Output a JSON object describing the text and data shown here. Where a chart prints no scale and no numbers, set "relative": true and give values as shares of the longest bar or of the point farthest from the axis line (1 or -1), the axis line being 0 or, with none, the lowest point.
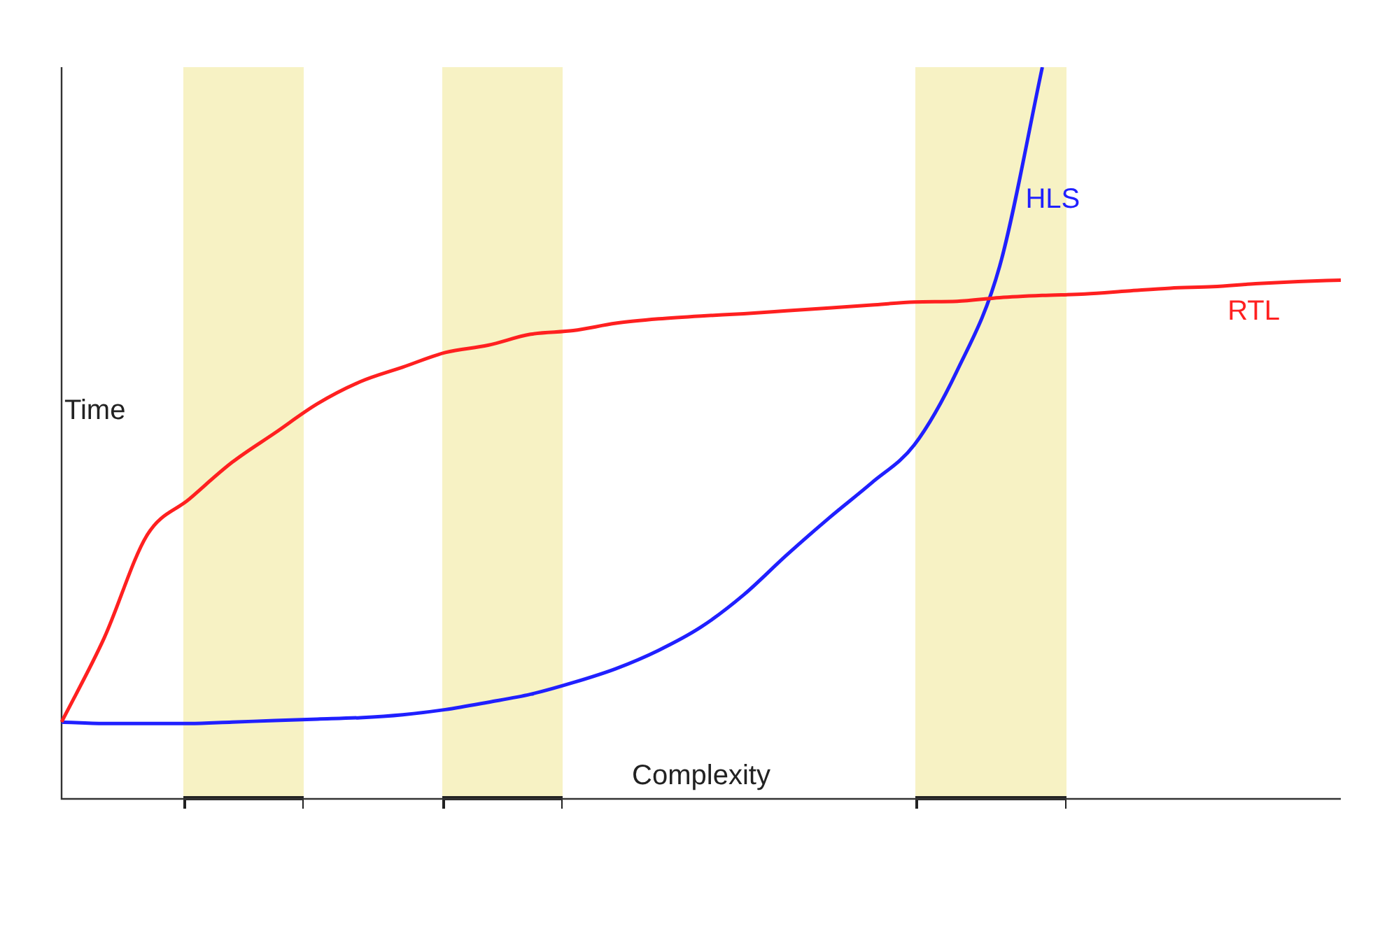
{
  "chart_data": {
    "type": "line",
    "relative": true,
    "xlabel": "Complexity",
    "ylabel": "Time",
    "legend": false,
    "marker": "none",
    "line_style": "solid",
    "categories": [
      null,
      null,
      null,
      null,
      null,
      null,
      null,
      null,
      null,
      null,
      null,
      null,
      null,
      null,
      null,
      null,
      null,
      null,
      null,
      null,
      null,
      null,
      null,
      null,
      null,
      null,
      null,
      null,
      null,
      null,
      null
    ],
    "series": [
      {
        "name": "RTL",
        "color": "#ff2020",
        "values": [
          0.105,
          0.22,
          0.36,
          0.41,
          0.46,
          0.5,
          0.54,
          0.57,
          0.59,
          0.61,
          0.62,
          0.635,
          0.64,
          0.65,
          0.656,
          0.66,
          0.663,
          0.667,
          0.671,
          0.675,
          0.679,
          0.68,
          0.685,
          0.688,
          0.69,
          0.694,
          0.698,
          0.7,
          0.704,
          0.707,
          0.709
        ]
      },
      {
        "name": "HLS",
        "color": "#2020ff",
        "values": [
          0.105,
          0.103,
          0.103,
          0.103,
          0.105,
          0.107,
          0.109,
          0.111,
          0.115,
          0.122,
          0.132,
          0.143,
          0.159,
          0.178,
          0.203,
          0.235,
          0.279,
          0.333,
          0.384,
          0.432,
          0.484,
          0.585,
          0.728,
          1,
          null,
          null,
          null,
          null,
          null,
          null,
          null
        ]
      }
    ]
  }
}
